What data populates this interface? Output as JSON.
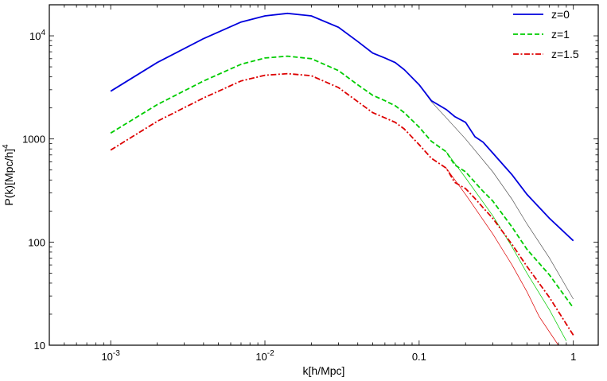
{
  "chart_data": {
    "type": "line",
    "xscale": "log",
    "yscale": "log",
    "xlim": [
      0.0004,
      1.45
    ],
    "ylim": [
      10,
      20000
    ],
    "xlabel": "k[h/Mpc]",
    "ylabel": "P(k)[Mpc/h]",
    "ylabel_sup": "4",
    "grid": false,
    "legend_position": "top-right",
    "x_ticks": [
      {
        "value": 0.001,
        "base": "10",
        "exp": "-3"
      },
      {
        "value": 0.01,
        "base": "10",
        "exp": "-2"
      },
      {
        "value": 0.1,
        "label": "0.1"
      },
      {
        "value": 1,
        "label": "1"
      }
    ],
    "y_ticks": [
      {
        "value": 10,
        "label": "10"
      },
      {
        "value": 100,
        "label": "100"
      },
      {
        "value": 1000,
        "label": "1000"
      },
      {
        "value": 10000,
        "base": "10",
        "exp": "4"
      }
    ],
    "series": [
      {
        "name": "z=0",
        "color": "#0000dd",
        "dash": "solid",
        "x": [
          0.001,
          0.002,
          0.004,
          0.007,
          0.01,
          0.014,
          0.02,
          0.03,
          0.04,
          0.05,
          0.06,
          0.07,
          0.08,
          0.1,
          0.12,
          0.15,
          0.17,
          0.2,
          0.23,
          0.26,
          0.3,
          0.4,
          0.5,
          0.7,
          1.0
        ],
        "y": [
          2900,
          5500,
          9400,
          13600,
          15600,
          16500,
          15600,
          12100,
          8800,
          6800,
          6100,
          5500,
          4700,
          3350,
          2350,
          1930,
          1650,
          1450,
          1050,
          930,
          730,
          450,
          290,
          170,
          103
        ]
      },
      {
        "name": "z=1",
        "color": "#00cc00",
        "dash": "dashed",
        "x": [
          0.001,
          0.002,
          0.004,
          0.007,
          0.01,
          0.014,
          0.02,
          0.03,
          0.04,
          0.05,
          0.06,
          0.07,
          0.08,
          0.1,
          0.12,
          0.15,
          0.17,
          0.2,
          0.23,
          0.26,
          0.3,
          0.4,
          0.5,
          0.7,
          1.0
        ],
        "y": [
          1140,
          2150,
          3650,
          5300,
          6100,
          6350,
          6000,
          4600,
          3350,
          2650,
          2350,
          2100,
          1800,
          1300,
          950,
          750,
          560,
          480,
          380,
          310,
          250,
          140,
          85,
          48,
          23
        ]
      },
      {
        "name": "z=1.5",
        "color": "#dd0000",
        "dash": "dashdot",
        "x": [
          0.001,
          0.002,
          0.004,
          0.007,
          0.01,
          0.014,
          0.02,
          0.03,
          0.04,
          0.05,
          0.06,
          0.07,
          0.08,
          0.1,
          0.12,
          0.15,
          0.17,
          0.2,
          0.23,
          0.26,
          0.3,
          0.4,
          0.5,
          0.7,
          1.0
        ],
        "y": [
          780,
          1480,
          2500,
          3650,
          4150,
          4300,
          4100,
          3150,
          2300,
          1800,
          1600,
          1450,
          1250,
          880,
          650,
          520,
          380,
          330,
          265,
          215,
          170,
          95,
          58,
          29,
          12.5
        ]
      }
    ],
    "reference_curves": [
      {
        "color": "#555555",
        "x": [
          0.1,
          0.12,
          0.15,
          0.2,
          0.3,
          0.4,
          0.5,
          0.7,
          1.0
        ],
        "y": [
          3350,
          2300,
          1600,
          1000,
          480,
          260,
          150,
          70,
          28
        ]
      },
      {
        "color": "#00cc00",
        "x": [
          0.15,
          0.2,
          0.3,
          0.4,
          0.5,
          0.7,
          0.9
        ],
        "y": [
          750,
          420,
          180,
          90,
          50,
          22,
          11
        ]
      },
      {
        "color": "#dd0000",
        "x": [
          0.15,
          0.2,
          0.3,
          0.4,
          0.5,
          0.6,
          0.8
        ],
        "y": [
          520,
          290,
          120,
          60,
          33,
          19,
          10
        ]
      }
    ]
  }
}
